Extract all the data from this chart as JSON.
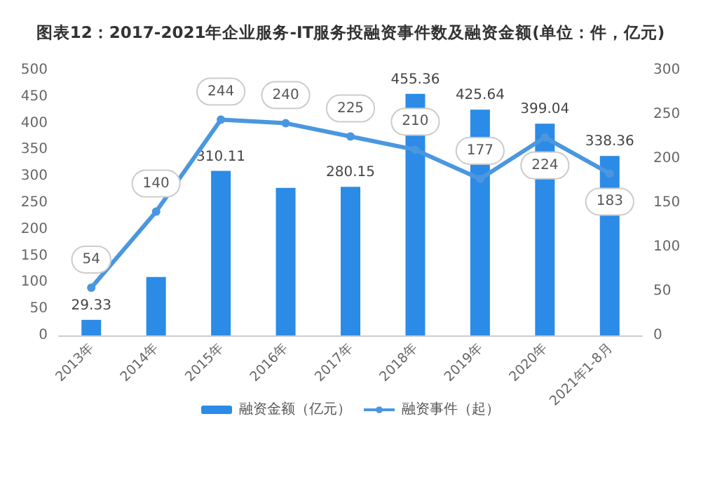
{
  "chart_data": {
    "type": "bar",
    "title": "图表12：2017-2021年企业服务-IT服务投融资事件数及融资金额(单位：件，亿元)",
    "categories": [
      "2013年",
      "2014年",
      "2015年",
      "2016年",
      "2017年",
      "2018年",
      "2019年",
      "2020年",
      "2021年1-8月"
    ],
    "series": [
      {
        "name": "融资金额（亿元）",
        "color": "#2b8be6",
        "values": [
          29.33,
          110,
          310.11,
          278,
          280.15,
          455.36,
          425.64,
          399.04,
          338.36
        ],
        "value_labels": [
          "29.33",
          null,
          "310.11",
          null,
          "280.15",
          "455.36",
          "425.64",
          "399.04",
          "338.36"
        ]
      },
      {
        "name": "融资事件（起）",
        "type": "line",
        "axis": "y2",
        "color": "#4a97e0",
        "values": [
          54,
          140,
          244,
          240,
          225,
          210,
          177,
          224,
          183
        ],
        "value_labels": [
          "54",
          "140",
          "244",
          "240",
          "225",
          "210",
          "177",
          "224",
          "183"
        ]
      }
    ],
    "ylim": [
      0,
      500
    ],
    "yticks": [
      0,
      50,
      100,
      150,
      200,
      250,
      300,
      350,
      400,
      450,
      500
    ],
    "y2lim": [
      0,
      300
    ],
    "y2ticks": [
      0,
      50,
      100,
      150,
      200,
      250,
      300
    ],
    "legend": "bottom",
    "marker": "circle",
    "line_style": "solid",
    "grid": false
  }
}
